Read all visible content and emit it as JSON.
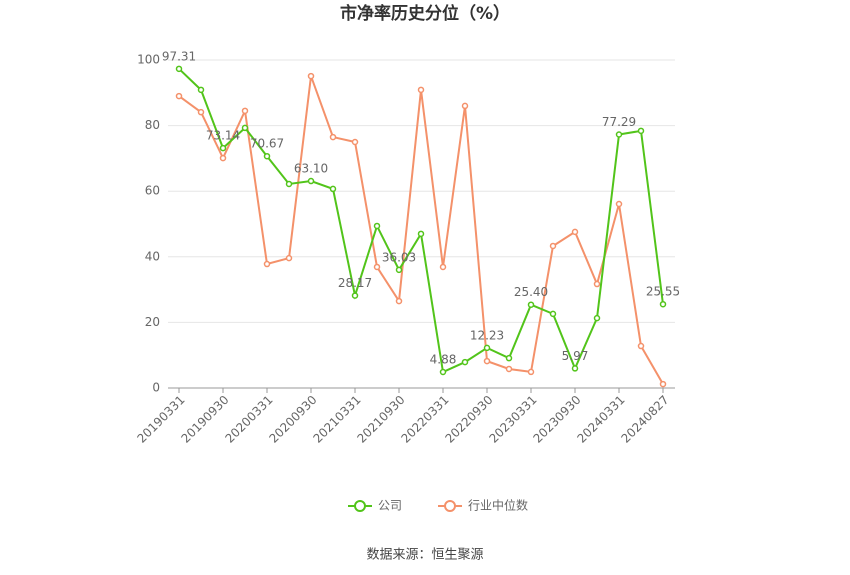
{
  "chart_data": {
    "type": "line",
    "title": "市净率历史分位（%）",
    "categories": [
      "20190331",
      null,
      "20190930",
      null,
      "20200331",
      null,
      "20200930",
      null,
      "20210331",
      null,
      "20210930",
      null,
      "20220331",
      null,
      "20220930",
      null,
      "20230331",
      null,
      "20230930",
      null,
      "20240331",
      null,
      "20240827"
    ],
    "series": [
      {
        "name": "公司",
        "color": "#52c41a",
        "values": [
          97.31,
          90.9,
          73.14,
          79.3,
          70.67,
          62.2,
          63.1,
          60.7,
          28.17,
          49.4,
          36.03,
          47,
          4.88,
          7.9,
          12.23,
          9.1,
          25.4,
          22.6,
          5.97,
          21.3,
          77.29,
          78.4,
          25.55
        ],
        "value_labels": [
          "97.31",
          null,
          "73.14",
          null,
          "70.67",
          null,
          "63.10",
          null,
          "28.17",
          null,
          "36.03",
          null,
          "4.88",
          null,
          "12.23",
          null,
          "25.40",
          null,
          "5.97",
          null,
          "77.29",
          null,
          "25.55"
        ]
      },
      {
        "name": "行业中位数",
        "color": "#f4916a",
        "values": [
          89,
          84.1,
          70.1,
          84.5,
          37.8,
          39.6,
          95.1,
          76.5,
          75,
          36.9,
          26.5,
          90.9,
          36.9,
          86,
          8.2,
          5.8,
          4.9,
          43.3,
          47.6,
          31.7,
          56.1,
          12.8,
          1.2
        ]
      }
    ],
    "ylim": [
      0,
      100
    ],
    "yticks": [
      0,
      20,
      40,
      60,
      80,
      100
    ],
    "grid": true,
    "legend": "bottom",
    "source": "数据来源：恒生聚源"
  }
}
